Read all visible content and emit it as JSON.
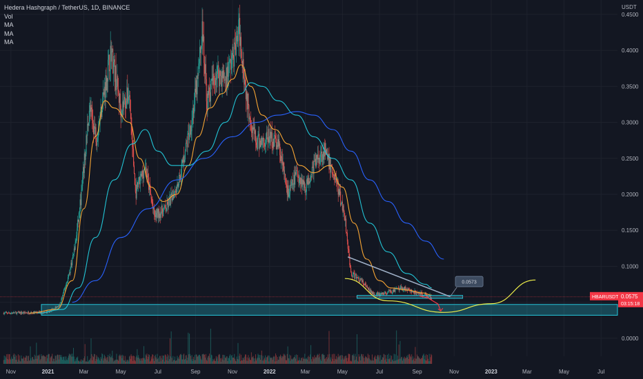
{
  "header": {
    "title": "Hedera Hashgraph / TetherUS, 1D, BINANCE",
    "indicators": [
      "Vol",
      "MA",
      "MA",
      "MA"
    ]
  },
  "colors": {
    "background": "#131722",
    "grid": "#1e222d",
    "text": "#b2b5be",
    "candle_up": "#26a69a",
    "candle_down": "#ef5350",
    "ma_short": "#f7a534",
    "ma_mid": "#22c5d6",
    "ma_long": "#2962ff",
    "trendline": "#9fb0c7",
    "zone": "#26c6da",
    "arc": "#f0f04a",
    "arrow": "#f23645",
    "price_label": "#f23645"
  },
  "chart_data": {
    "type": "candlestick",
    "symbol": "HBARUSDT",
    "y_unit": "USDT",
    "y_axis_ticks": [
      "0.4500",
      "0.4000",
      "0.3500",
      "0.3000",
      "0.2500",
      "0.2000",
      "0.1500",
      "0.1000",
      "0.0500",
      "0.0000"
    ],
    "x_axis_ticks": [
      "Nov",
      "2021",
      "Mar",
      "May",
      "Jul",
      "Sep",
      "Nov",
      "2022",
      "Mar",
      "May",
      "Jul",
      "Sep",
      "Nov",
      "2023",
      "Mar",
      "May",
      "Jul"
    ],
    "ylim": [
      -0.025,
      0.47
    ],
    "grid": true,
    "price_path": [
      [
        "2020-10-20",
        0.035
      ],
      [
        "2020-12-31",
        0.036
      ],
      [
        "2021-01-20",
        0.045
      ],
      [
        "2021-02-05",
        0.09
      ],
      [
        "2021-02-15",
        0.13
      ],
      [
        "2021-02-25",
        0.2
      ],
      [
        "2021-03-10",
        0.32
      ],
      [
        "2021-03-22",
        0.28
      ],
      [
        "2021-04-05",
        0.35
      ],
      [
        "2021-04-15",
        0.4
      ],
      [
        "2021-05-01",
        0.32
      ],
      [
        "2021-05-15",
        0.34
      ],
      [
        "2021-05-25",
        0.2
      ],
      [
        "2021-06-10",
        0.24
      ],
      [
        "2021-06-25",
        0.17
      ],
      [
        "2021-07-15",
        0.18
      ],
      [
        "2021-08-05",
        0.22
      ],
      [
        "2021-08-25",
        0.3
      ],
      [
        "2021-09-05",
        0.36
      ],
      [
        "2021-09-12",
        0.43
      ],
      [
        "2021-09-20",
        0.33
      ],
      [
        "2021-10-05",
        0.37
      ],
      [
        "2021-10-20",
        0.36
      ],
      [
        "2021-11-05",
        0.4
      ],
      [
        "2021-11-12",
        0.43
      ],
      [
        "2021-11-25",
        0.33
      ],
      [
        "2021-12-10",
        0.27
      ],
      [
        "2022-01-01",
        0.28
      ],
      [
        "2022-01-15",
        0.27
      ],
      [
        "2022-02-01",
        0.2
      ],
      [
        "2022-02-15",
        0.23
      ],
      [
        "2022-03-01",
        0.21
      ],
      [
        "2022-03-20",
        0.25
      ],
      [
        "2022-04-01",
        0.26
      ],
      [
        "2022-04-20",
        0.22
      ],
      [
        "2022-05-05",
        0.17
      ],
      [
        "2022-05-15",
        0.09
      ],
      [
        "2022-06-01",
        0.08
      ],
      [
        "2022-06-15",
        0.065
      ],
      [
        "2022-07-01",
        0.06
      ],
      [
        "2022-07-20",
        0.065
      ],
      [
        "2022-08-10",
        0.07
      ],
      [
        "2022-08-25",
        0.064
      ],
      [
        "2022-09-15",
        0.06
      ],
      [
        "2022-09-25",
        0.0575
      ]
    ],
    "moving_averages": [
      {
        "color_key": "ma_short",
        "points": [
          [
            "2020-12-01",
            0.035
          ],
          [
            "2021-01-15",
            0.04
          ],
          [
            "2021-02-10",
            0.08
          ],
          [
            "2021-03-01",
            0.18
          ],
          [
            "2021-03-20",
            0.28
          ],
          [
            "2021-04-05",
            0.33
          ],
          [
            "2021-04-20",
            0.32
          ],
          [
            "2021-05-15",
            0.3
          ],
          [
            "2021-06-01",
            0.25
          ],
          [
            "2021-06-20",
            0.21
          ],
          [
            "2021-07-10",
            0.19
          ],
          [
            "2021-08-01",
            0.2
          ],
          [
            "2021-08-20",
            0.24
          ],
          [
            "2021-09-05",
            0.28
          ],
          [
            "2021-09-25",
            0.32
          ],
          [
            "2021-10-15",
            0.34
          ],
          [
            "2021-11-01",
            0.36
          ],
          [
            "2021-11-15",
            0.38
          ],
          [
            "2021-12-01",
            0.35
          ],
          [
            "2021-12-20",
            0.31
          ],
          [
            "2022-01-10",
            0.29
          ],
          [
            "2022-02-01",
            0.27
          ],
          [
            "2022-02-20",
            0.24
          ],
          [
            "2022-03-15",
            0.23
          ],
          [
            "2022-04-10",
            0.24
          ],
          [
            "2022-05-01",
            0.21
          ],
          [
            "2022-05-20",
            0.16
          ],
          [
            "2022-06-10",
            0.11
          ],
          [
            "2022-07-01",
            0.08
          ],
          [
            "2022-07-20",
            0.07
          ],
          [
            "2022-08-15",
            0.067
          ],
          [
            "2022-09-10",
            0.063
          ],
          [
            "2022-09-25",
            0.06
          ]
        ]
      },
      {
        "color_key": "ma_mid",
        "points": [
          [
            "2020-12-15",
            0.035
          ],
          [
            "2021-01-25",
            0.04
          ],
          [
            "2021-02-20",
            0.07
          ],
          [
            "2021-03-20",
            0.14
          ],
          [
            "2021-04-20",
            0.22
          ],
          [
            "2021-05-20",
            0.27
          ],
          [
            "2021-06-10",
            0.29
          ],
          [
            "2021-07-01",
            0.26
          ],
          [
            "2021-07-25",
            0.24
          ],
          [
            "2021-08-20",
            0.24
          ],
          [
            "2021-09-20",
            0.26
          ],
          [
            "2021-10-20",
            0.3
          ],
          [
            "2021-11-15",
            0.34
          ],
          [
            "2021-12-01",
            0.355
          ],
          [
            "2021-12-20",
            0.35
          ],
          [
            "2022-01-15",
            0.33
          ],
          [
            "2022-02-15",
            0.31
          ],
          [
            "2022-03-15",
            0.28
          ],
          [
            "2022-04-15",
            0.25
          ],
          [
            "2022-05-15",
            0.22
          ],
          [
            "2022-06-15",
            0.16
          ],
          [
            "2022-07-15",
            0.12
          ],
          [
            "2022-08-15",
            0.09
          ],
          [
            "2022-09-15",
            0.075
          ],
          [
            "2022-09-25",
            0.07
          ]
        ]
      },
      {
        "color_key": "ma_long",
        "points": [
          [
            "2021-02-10",
            0.05
          ],
          [
            "2021-03-20",
            0.08
          ],
          [
            "2021-05-01",
            0.14
          ],
          [
            "2021-06-15",
            0.18
          ],
          [
            "2021-08-01",
            0.22
          ],
          [
            "2021-09-15",
            0.25
          ],
          [
            "2021-11-01",
            0.28
          ],
          [
            "2021-12-10",
            0.3
          ],
          [
            "2022-01-15",
            0.31
          ],
          [
            "2022-02-15",
            0.315
          ],
          [
            "2022-03-15",
            0.31
          ],
          [
            "2022-04-15",
            0.29
          ],
          [
            "2022-05-15",
            0.26
          ],
          [
            "2022-06-15",
            0.22
          ],
          [
            "2022-07-15",
            0.19
          ],
          [
            "2022-08-15",
            0.16
          ],
          [
            "2022-09-15",
            0.135
          ],
          [
            "2022-10-15",
            0.11
          ]
        ]
      }
    ],
    "annotations": {
      "trendline": [
        [
          "2022-05-10",
          0.113
        ],
        [
          "2022-10-25",
          0.058
        ]
      ],
      "support_short": {
        "x": [
          "2022-05-25",
          "2022-11-15"
        ],
        "y": [
          0.0555,
          0.0595
        ]
      },
      "support_zone": {
        "y": [
          0.032,
          0.047
        ]
      },
      "arc": [
        [
          "2022-05-05",
          0.083
        ],
        [
          "2022-07-15",
          0.052
        ],
        [
          "2022-10-15",
          0.036
        ],
        [
          "2023-01-01",
          0.048
        ],
        [
          "2023-03-15",
          0.081
        ]
      ],
      "projection_arrow": [
        [
          "2022-09-05",
          0.059
        ],
        [
          "2022-10-10",
          0.038
        ]
      ],
      "callout": {
        "text": "0.0573",
        "at": [
          "2022-10-25",
          0.0573
        ]
      },
      "current_price_line": 0.0575
    },
    "price_labels": {
      "symbol": "HBARUSDT",
      "price": "0.0575",
      "countdown": "03:15:18"
    },
    "volume_note": "volume histogram along the bottom of the pane"
  }
}
